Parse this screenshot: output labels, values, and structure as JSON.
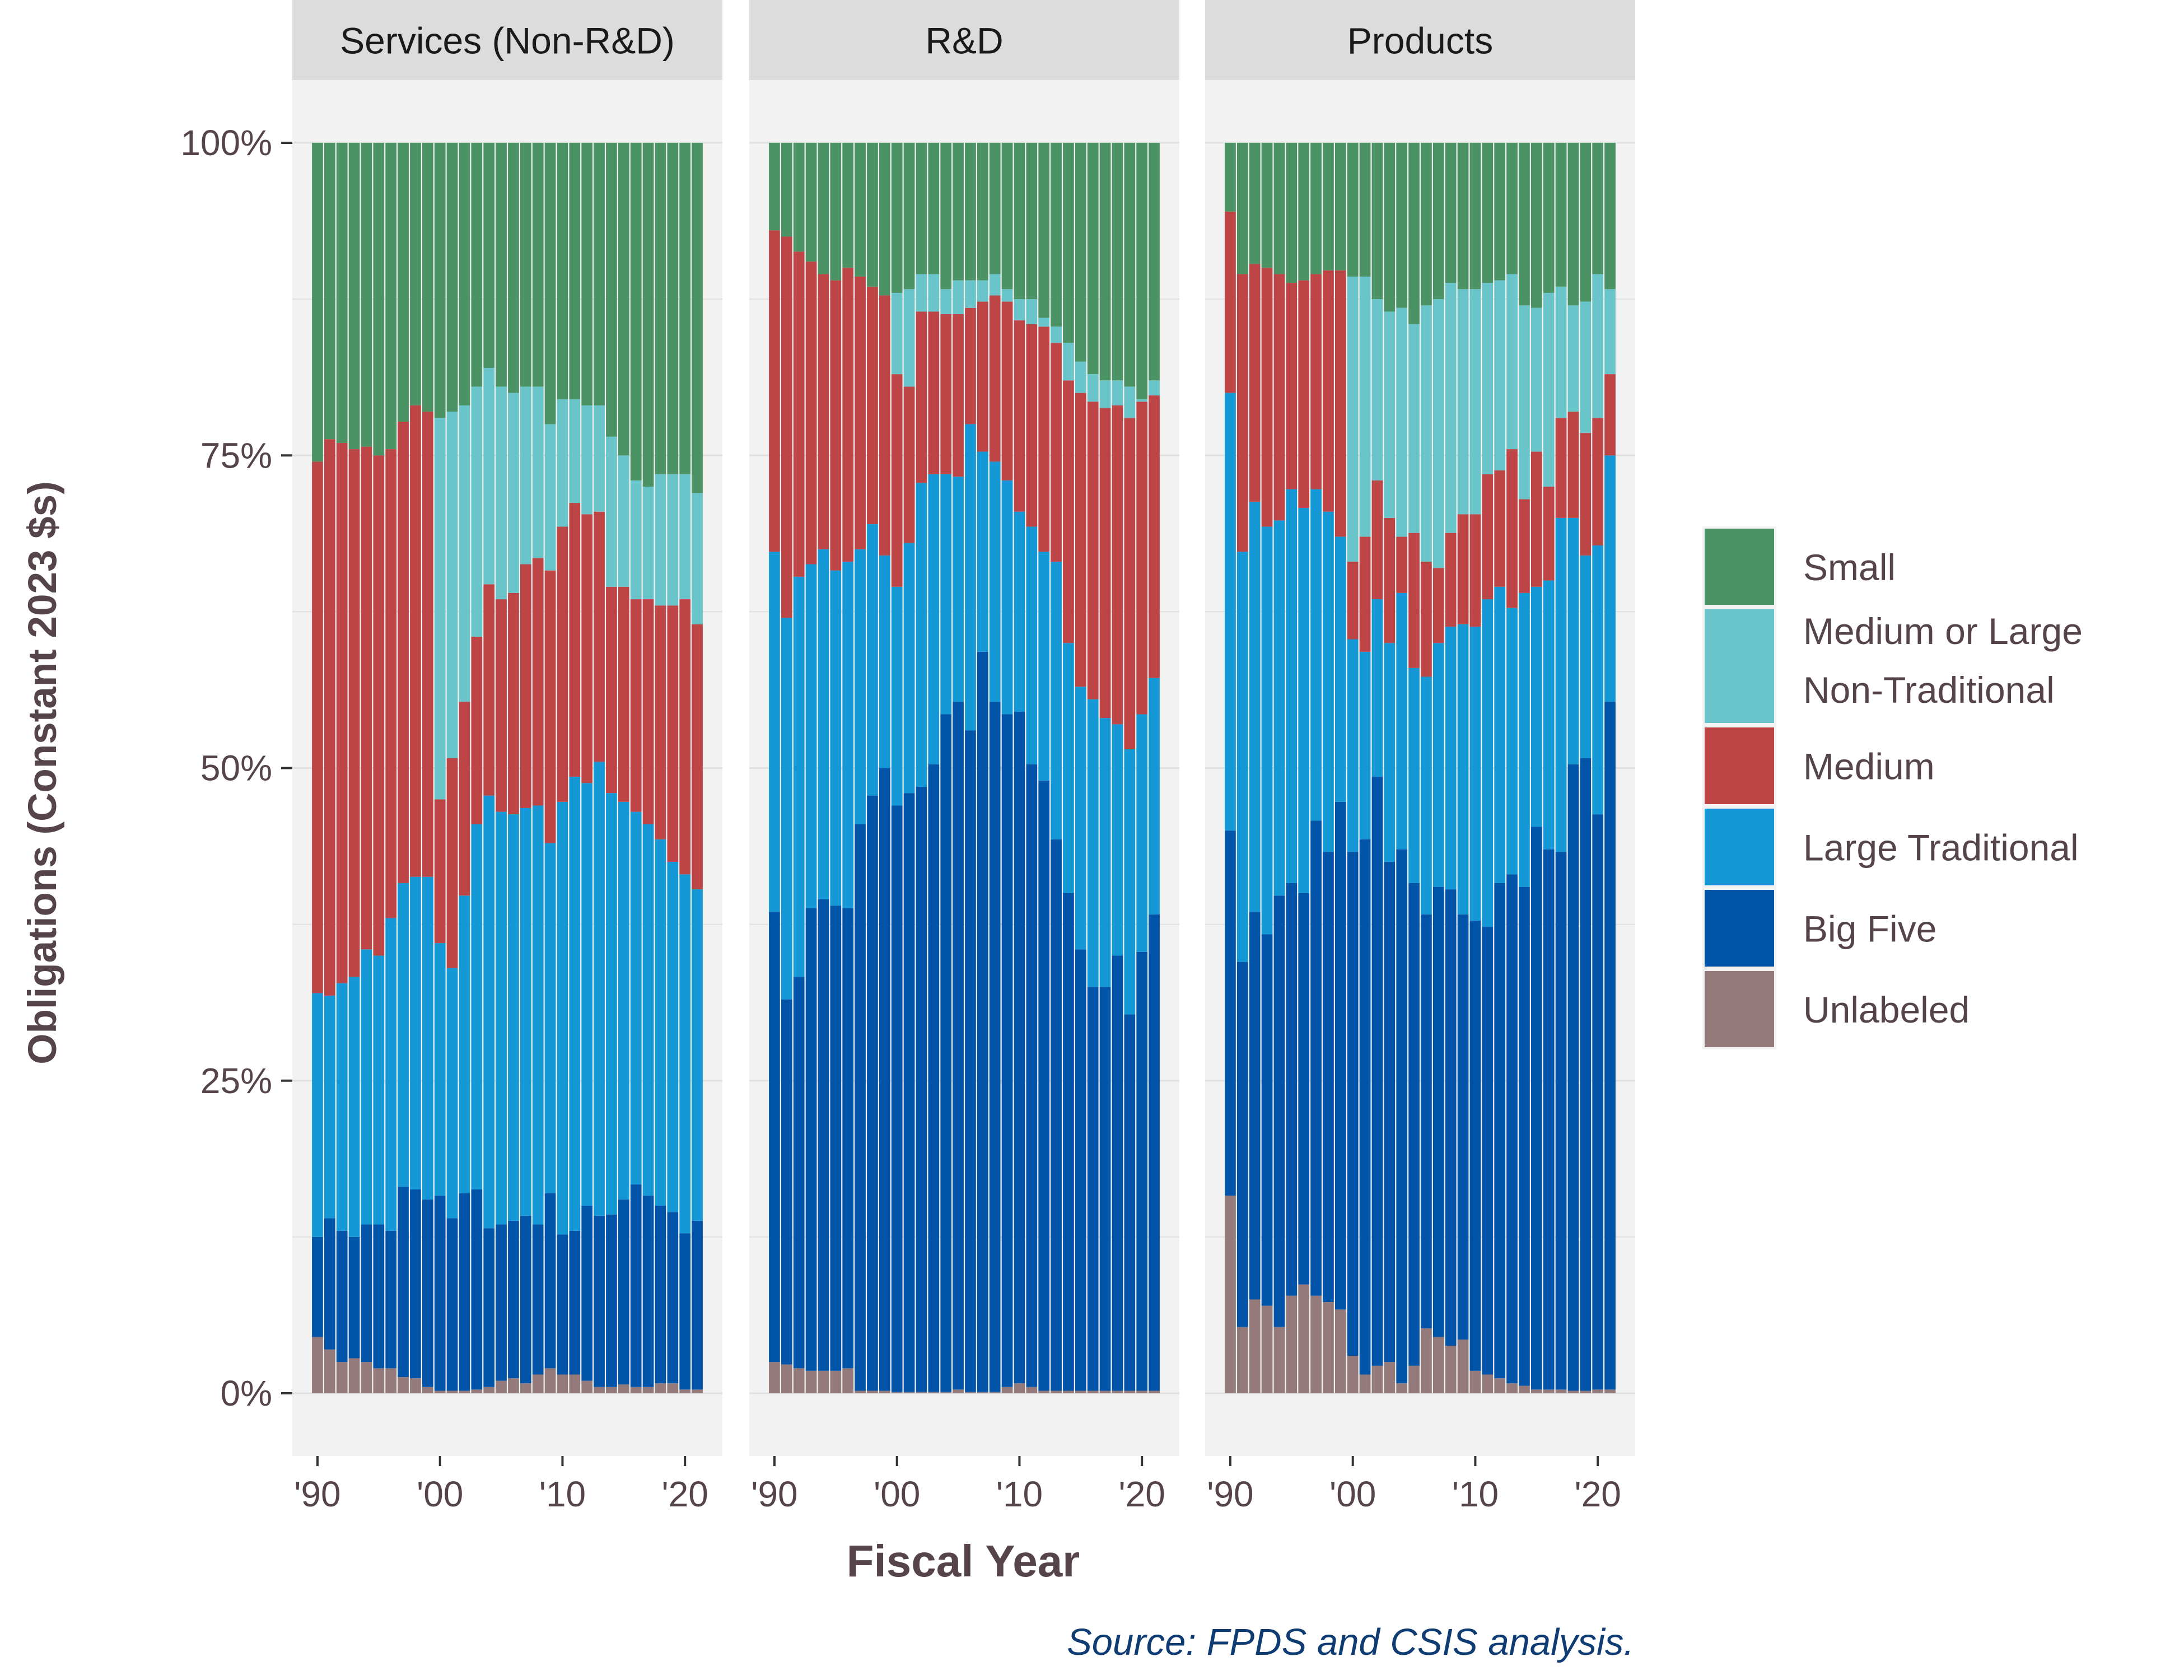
{
  "chart_data": {
    "type": "bar",
    "stacked": "percent",
    "facets": [
      "Services (Non-R&D)",
      "R&D",
      "Products"
    ],
    "xlabel": "Fiscal Year",
    "ylabel": "Obligations (Constant 2023 $s)",
    "source": "Source: FPDS and CSIS analysis.",
    "x": [
      1990,
      1991,
      1992,
      1993,
      1994,
      1995,
      1996,
      1997,
      1998,
      1999,
      2000,
      2001,
      2002,
      2003,
      2004,
      2005,
      2006,
      2007,
      2008,
      2009,
      2010,
      2011,
      2012,
      2013,
      2014,
      2015,
      2016,
      2017,
      2018,
      2019,
      2020,
      2021
    ],
    "x_ticks": [
      1990,
      2000,
      2010,
      2020
    ],
    "x_tick_labels": [
      "'90",
      "'00",
      "'10",
      "'20"
    ],
    "y_ticks": [
      0,
      25,
      50,
      75,
      100
    ],
    "y_tick_labels": [
      "0%",
      "25%",
      "50%",
      "75%",
      "100%"
    ],
    "ylim": [
      0,
      100
    ],
    "grid": true,
    "legend_position": "right",
    "legend": [
      {
        "name": "Small",
        "color": "#4b9264"
      },
      {
        "name": "Medium or Large",
        "name2": "Non-Traditional",
        "color": "#69c5c9"
      },
      {
        "name": "Medium",
        "color": "#bd4545"
      },
      {
        "name": "Large Traditional",
        "color": "#1499d6"
      },
      {
        "name": "Big Five",
        "color": "#0254a8"
      },
      {
        "name": "Unlabeled",
        "color": "#947a7a"
      }
    ],
    "stack_order": [
      "Unlabeled",
      "Big Five",
      "Large Traditional",
      "Medium",
      "Medium or Large Non-Traditional",
      "Small"
    ],
    "panels": [
      {
        "facet": "Services (Non-R&D)",
        "cumulative_tops": {
          "Unlabeled": [
            4.5,
            3.5,
            2.5,
            2.8,
            2.5,
            2,
            2,
            1.3,
            1.2,
            0.5,
            0.2,
            0.2,
            0.2,
            0.3,
            0.5,
            1,
            1.2,
            0.8,
            1.5,
            2,
            1.5,
            1.5,
            1,
            0.5,
            0.5,
            0.7,
            0.5,
            0.5,
            0.8,
            0.8,
            0.3,
            0.3
          ],
          "Big Five": [
            12.5,
            14,
            13,
            12.5,
            13.5,
            13.5,
            13,
            16.5,
            16.3,
            15.5,
            15.8,
            14,
            16,
            16.3,
            13.2,
            13.5,
            13.8,
            14.2,
            13.5,
            16,
            12.7,
            13,
            15,
            14.2,
            14.3,
            15.5,
            16.7,
            15.8,
            15,
            14.5,
            12.8,
            13.8
          ],
          "Large Traditional": [
            32,
            31.8,
            32.8,
            33.3,
            35.5,
            35,
            38,
            40.8,
            41.3,
            41.3,
            36,
            34,
            39.8,
            45.5,
            47.8,
            46.5,
            46.3,
            46.8,
            47,
            44,
            47.3,
            49.3,
            48.8,
            50.5,
            48,
            47.3,
            46.5,
            45.5,
            44.3,
            42.5,
            41.5,
            40.3
          ],
          "Medium": [
            74.5,
            76.3,
            76,
            75.5,
            75.7,
            75,
            75.5,
            77.7,
            79,
            78.5,
            47.5,
            50.8,
            55.3,
            60.5,
            64.7,
            63.5,
            64,
            66.3,
            66.8,
            65.8,
            69.3,
            71.2,
            70.3,
            70.5,
            64.5,
            64.5,
            63.5,
            63.5,
            63,
            63,
            63.5,
            61.5
          ],
          "Medium or Large Non-Traditional": [
            74.5,
            76.3,
            76,
            75.5,
            75.7,
            75,
            75.5,
            77.7,
            79,
            78.5,
            78,
            78.5,
            79,
            80.5,
            82,
            80.5,
            80,
            80.5,
            80.5,
            77.5,
            79.5,
            79.5,
            79,
            79,
            76.5,
            75,
            73,
            72.5,
            73.5,
            73.5,
            73.5,
            72
          ]
        }
      },
      {
        "facet": "R&D",
        "cumulative_tops": {
          "Unlabeled": [
            2.5,
            2.3,
            2,
            1.8,
            1.8,
            1.8,
            2,
            0.2,
            0.2,
            0.2,
            0.1,
            0.1,
            0.1,
            0.1,
            0.1,
            0.3,
            0.1,
            0.1,
            0.1,
            0.5,
            0.8,
            0.5,
            0.2,
            0.2,
            0.2,
            0.2,
            0.2,
            0.2,
            0.2,
            0.2,
            0.2,
            0.2
          ],
          "Big Five": [
            38.5,
            31.5,
            33.3,
            38.8,
            39.5,
            39,
            38.8,
            45.5,
            47.8,
            50,
            47,
            48,
            48.5,
            50.3,
            54.3,
            55.3,
            53,
            59.3,
            55.3,
            54.3,
            54.5,
            50.3,
            49,
            44.3,
            40,
            35.5,
            32.5,
            32.5,
            35,
            30.3,
            35.3,
            38.3
          ],
          "Large Traditional": [
            67.3,
            62,
            65.3,
            66.3,
            67.5,
            65.8,
            66.5,
            67.5,
            69.5,
            67,
            64.5,
            68,
            72.8,
            73.5,
            73.5,
            73.3,
            77.5,
            75.3,
            74.5,
            73,
            70.5,
            69.3,
            67.3,
            66.5,
            60,
            56.5,
            55.5,
            54,
            53.5,
            51.5,
            54.3,
            57.2
          ],
          "Medium": [
            93,
            92.5,
            91.3,
            90.5,
            89.5,
            89,
            90,
            89.3,
            88.5,
            87.8,
            81.5,
            80.5,
            86.5,
            86.5,
            86.3,
            86.3,
            86.8,
            87.3,
            87.8,
            87.3,
            85.8,
            85.5,
            85.3,
            84,
            81,
            80,
            79.3,
            78.8,
            79,
            78,
            79.3,
            79.8
          ],
          "Medium or Large Non-Traditional": [
            93,
            92.5,
            91.3,
            90.5,
            89.5,
            89,
            90,
            89.3,
            88.5,
            87.8,
            88,
            88.3,
            89.5,
            89.5,
            88.3,
            89,
            89,
            89,
            89.5,
            88.3,
            87.5,
            87.5,
            86,
            85.3,
            84,
            82.5,
            81.5,
            81,
            81,
            80.5,
            79.5,
            81
          ]
        }
      },
      {
        "facet": "Products",
        "cumulative_tops": {
          "Unlabeled": [
            15.8,
            5.3,
            7.5,
            7,
            5.3,
            7.8,
            8.7,
            7.8,
            7.3,
            6.7,
            3,
            1.5,
            2.2,
            2.5,
            0.8,
            2.2,
            5.2,
            4.5,
            3.8,
            4.3,
            1.8,
            1.5,
            1.2,
            0.8,
            0.6,
            0.3,
            0.3,
            0.3,
            0.2,
            0.2,
            0.3,
            0.3
          ],
          "Big Five": [
            45,
            34.5,
            38.5,
            36.7,
            39.8,
            40.8,
            40,
            45.8,
            43.3,
            47.3,
            43.3,
            44.3,
            49.3,
            42.5,
            43.5,
            40.8,
            38.3,
            40.5,
            40.3,
            38.3,
            37.8,
            37.3,
            40.8,
            41.5,
            40.5,
            45.3,
            43.5,
            43.3,
            50.3,
            50.8,
            46.3,
            55.3
          ],
          "Large Traditional": [
            80,
            67.3,
            71.3,
            69.3,
            69.8,
            72.3,
            70.8,
            72.3,
            70.5,
            68.5,
            60.3,
            59.3,
            63.5,
            60,
            64,
            58,
            57.3,
            60,
            61.3,
            61.5,
            61.3,
            63.5,
            64.5,
            62.8,
            64,
            64.5,
            65,
            70,
            70,
            67,
            67.8,
            75
          ],
          "Medium": [
            94.5,
            89.5,
            90.3,
            90,
            89.5,
            88.8,
            89,
            89.5,
            89.8,
            89.8,
            66.5,
            68.5,
            73,
            70,
            68.5,
            68.8,
            66.5,
            66,
            68.8,
            70.3,
            70.3,
            73.5,
            73.8,
            75.5,
            71.5,
            75.3,
            72.5,
            78,
            78.5,
            76.8,
            78,
            81.5
          ],
          "Medium or Large Non-Traditional": [
            94.5,
            89.5,
            90.3,
            90,
            89.5,
            88.8,
            89,
            89.5,
            89.8,
            89.8,
            89.3,
            89.3,
            87.5,
            86.5,
            86.8,
            85.5,
            87,
            87.5,
            88.8,
            88.3,
            88.3,
            88.8,
            89,
            89.5,
            87,
            86.8,
            88,
            88.5,
            87,
            87.3,
            89.5,
            88.3
          ]
        }
      }
    ]
  }
}
